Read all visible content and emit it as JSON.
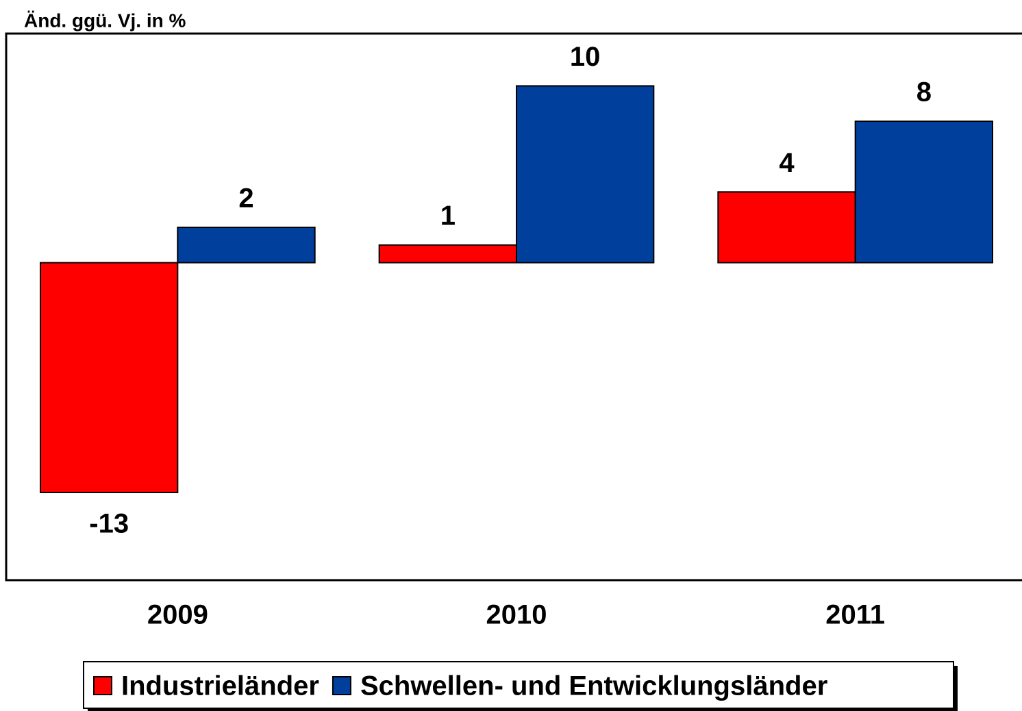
{
  "chart_data": {
    "type": "bar",
    "y_label": "Änd. ggü. Vj. in %",
    "categories": [
      "2009",
      "2010",
      "2011"
    ],
    "series": [
      {
        "name": "Industrieländer",
        "color": "#ff0000",
        "values": [
          -13,
          1,
          4
        ]
      },
      {
        "name": "Schwellen- und Entwicklungsländer",
        "color": "#003f9c",
        "values": [
          2,
          10,
          8
        ]
      }
    ],
    "ylim": [
      -18,
      13
    ]
  }
}
